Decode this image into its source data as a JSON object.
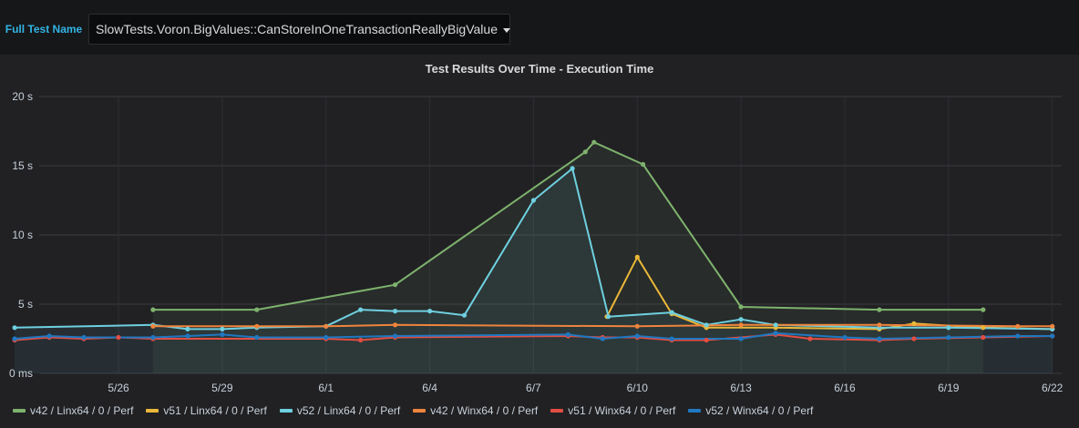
{
  "template_var": {
    "label": "Full Test Name",
    "value": "SlowTests.Voron.BigValues::CanStoreInOneTransactionReallyBigValue"
  },
  "panel": {
    "title": "Test Results Over Time - Execution Time"
  },
  "chart_data": {
    "type": "line",
    "title": "Test Results Over Time - Execution Time",
    "x_type": "date",
    "xlim": [
      "5/23",
      "6/22"
    ],
    "ylim": [
      0,
      20
    ],
    "y_unit": "s",
    "x_ticks": [
      "5/26",
      "5/29",
      "6/1",
      "6/4",
      "6/7",
      "6/10",
      "6/13",
      "6/16",
      "6/19",
      "6/22"
    ],
    "y_ticks": [
      {
        "value": 0,
        "label": "0 ms"
      },
      {
        "value": 5,
        "label": "5 s"
      },
      {
        "value": 10,
        "label": "10 s"
      },
      {
        "value": 15,
        "label": "15 s"
      },
      {
        "value": 20,
        "label": "20 s"
      }
    ],
    "grid": true,
    "legend_position": "bottom",
    "series": [
      {
        "name": "v42 / Linx64 / 0 / Perf",
        "color": "#7eb26d",
        "fill": true,
        "points": [
          [
            "5/27",
            4.6
          ],
          [
            "5/30",
            4.6
          ],
          [
            "6/3",
            6.4
          ],
          [
            "6/8 12:00",
            16.0
          ],
          [
            "6/8 18:00",
            16.7
          ],
          [
            "6/10 4:00",
            15.1
          ],
          [
            "6/13",
            4.8
          ],
          [
            "6/17",
            4.6
          ],
          [
            "6/20",
            4.6
          ]
        ]
      },
      {
        "name": "v51 / Linx64 / 0 / Perf",
        "color": "#eab839",
        "fill": false,
        "points": [
          [
            "6/9 3:00",
            4.1
          ],
          [
            "6/10",
            8.4
          ],
          [
            "6/11",
            4.3
          ],
          [
            "6/12",
            3.3
          ],
          [
            "6/14",
            3.3
          ],
          [
            "6/17",
            3.2
          ],
          [
            "6/18",
            3.6
          ],
          [
            "6/20",
            3.3
          ],
          [
            "6/22",
            3.2
          ]
        ]
      },
      {
        "name": "v52 / Linx64 / 0 / Perf",
        "color": "#6ed0e0",
        "fill": true,
        "points": [
          [
            "5/23",
            3.3
          ],
          [
            "5/27",
            3.5
          ],
          [
            "5/28",
            3.2
          ],
          [
            "5/29",
            3.2
          ],
          [
            "5/30",
            3.3
          ],
          [
            "6/1",
            3.4
          ],
          [
            "6/2",
            4.6
          ],
          [
            "6/3",
            4.5
          ],
          [
            "6/4",
            4.5
          ],
          [
            "6/5",
            4.2
          ],
          [
            "6/7",
            12.5
          ],
          [
            "6/8 3:00",
            14.8
          ],
          [
            "6/9 4:00",
            4.1
          ],
          [
            "6/11",
            4.4
          ],
          [
            "6/12",
            3.5
          ],
          [
            "6/13",
            3.9
          ],
          [
            "6/14",
            3.5
          ],
          [
            "6/17",
            3.3
          ],
          [
            "6/19",
            3.3
          ],
          [
            "6/22",
            3.2
          ]
        ]
      },
      {
        "name": "v42 / Winx64 / 0 / Perf",
        "color": "#ef843c",
        "fill": false,
        "points": [
          [
            "5/27",
            3.4
          ],
          [
            "5/30",
            3.4
          ],
          [
            "6/1",
            3.4
          ],
          [
            "6/3",
            3.5
          ],
          [
            "6/10",
            3.4
          ],
          [
            "6/13",
            3.5
          ],
          [
            "6/17",
            3.5
          ],
          [
            "6/21",
            3.4
          ],
          [
            "6/22",
            3.4
          ]
        ]
      },
      {
        "name": "v51 / Winx64 / 0 / Perf",
        "color": "#e24d42",
        "fill": false,
        "points": [
          [
            "5/23",
            2.4
          ],
          [
            "5/24",
            2.6
          ],
          [
            "5/25",
            2.5
          ],
          [
            "5/26",
            2.6
          ],
          [
            "5/27",
            2.5
          ],
          [
            "6/1",
            2.5
          ],
          [
            "6/2",
            2.4
          ],
          [
            "6/3",
            2.6
          ],
          [
            "6/8",
            2.7
          ],
          [
            "6/9",
            2.6
          ],
          [
            "6/10",
            2.6
          ],
          [
            "6/11",
            2.4
          ],
          [
            "6/12",
            2.4
          ],
          [
            "6/14",
            2.8
          ],
          [
            "6/15",
            2.5
          ],
          [
            "6/17",
            2.4
          ],
          [
            "6/18",
            2.5
          ],
          [
            "6/20",
            2.6
          ],
          [
            "6/22",
            2.7
          ]
        ]
      },
      {
        "name": "v52 / Winx64 / 0 / Perf",
        "color": "#1f78c1",
        "fill": false,
        "points": [
          [
            "5/23",
            2.5
          ],
          [
            "5/24",
            2.7
          ],
          [
            "5/25",
            2.6
          ],
          [
            "5/27",
            2.6
          ],
          [
            "5/28",
            2.7
          ],
          [
            "5/29",
            2.8
          ],
          [
            "5/30",
            2.6
          ],
          [
            "6/1",
            2.6
          ],
          [
            "6/3",
            2.7
          ],
          [
            "6/8",
            2.8
          ],
          [
            "6/9",
            2.5
          ],
          [
            "6/10",
            2.7
          ],
          [
            "6/11",
            2.5
          ],
          [
            "6/13",
            2.5
          ],
          [
            "6/14",
            2.9
          ],
          [
            "6/16",
            2.6
          ],
          [
            "6/17",
            2.5
          ],
          [
            "6/19",
            2.6
          ],
          [
            "6/21",
            2.7
          ],
          [
            "6/22",
            2.7
          ]
        ]
      }
    ]
  }
}
